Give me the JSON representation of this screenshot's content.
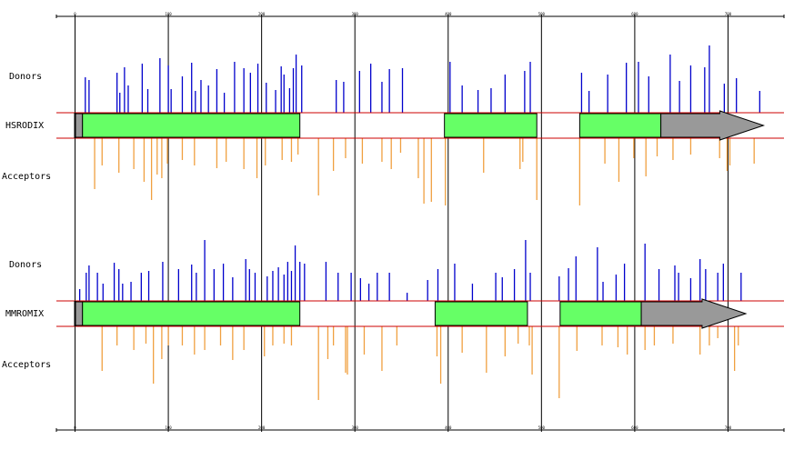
{
  "axis": {
    "xlim": [
      -20,
      760
    ],
    "xticks": [
      0,
      100,
      200,
      300,
      400,
      500,
      600,
      700
    ]
  },
  "chart_data": [
    {
      "type": "splice",
      "title": "HSRODIX",
      "ylim": [
        0,
        80
      ],
      "series": [
        {
          "name": "Donors",
          "color": "#0000cc",
          "x": [
            11,
            15,
            45,
            48,
            53,
            57,
            72,
            78,
            91,
            100,
            103,
            115,
            125,
            129,
            135,
            143,
            152,
            160,
            171,
            181,
            188,
            196,
            205,
            215,
            221,
            224,
            230,
            234,
            237,
            243,
            280,
            288,
            305,
            317,
            329,
            337,
            351,
            402,
            415,
            432,
            446,
            461,
            482,
            488,
            543,
            551,
            571,
            591,
            604,
            615,
            638,
            648,
            660,
            675,
            680,
            696,
            709,
            734
          ],
          "values": [
            39,
            36,
            44,
            22,
            50,
            30,
            54,
            26,
            60,
            52,
            26,
            40,
            55,
            24,
            36,
            30,
            48,
            22,
            56,
            49,
            44,
            54,
            33,
            25,
            51,
            42,
            27,
            49,
            64,
            52,
            36,
            34,
            46,
            54,
            34,
            48,
            49,
            56,
            30,
            25,
            27,
            42,
            46,
            56,
            44,
            24,
            42,
            55,
            56,
            40,
            64,
            35,
            52,
            50,
            74,
            32,
            38,
            24
          ]
        },
        {
          "name": "Acceptors",
          "color": "#f0a040",
          "x": [
            21,
            29,
            47,
            63,
            74,
            82,
            88,
            93,
            99,
            115,
            128,
            152,
            162,
            181,
            195,
            204,
            222,
            232,
            239,
            261,
            277,
            290,
            308,
            329,
            339,
            349,
            368,
            374,
            382,
            397,
            438,
            477,
            480,
            495,
            541,
            568,
            583,
            599,
            612,
            624,
            641,
            660,
            691,
            699,
            702,
            728
          ],
          "values": [
            56,
            30,
            38,
            34,
            48,
            68,
            40,
            44,
            28,
            24,
            30,
            33,
            26,
            34,
            44,
            30,
            24,
            26,
            18,
            63,
            36,
            22,
            28,
            26,
            34,
            16,
            44,
            72,
            70,
            74,
            38,
            34,
            26,
            68,
            74,
            28,
            48,
            22,
            42,
            20,
            24,
            18,
            22,
            36,
            30,
            28
          ]
        }
      ],
      "features": [
        {
          "start": 0,
          "end": 8,
          "color": "#999999",
          "shape": "rect"
        },
        {
          "start": 8,
          "end": 241,
          "color": "#66ff66",
          "shape": "rect"
        },
        {
          "start": 396,
          "end": 495,
          "color": "#66ff66",
          "shape": "rect"
        },
        {
          "start": 541,
          "end": 628,
          "color": "#66ff66",
          "shape": "rect"
        },
        {
          "start": 628,
          "end": 738,
          "color": "#999999",
          "shape": "arrow"
        }
      ]
    },
    {
      "type": "splice",
      "title": "MMROMIX",
      "ylim": [
        0,
        80
      ],
      "series": [
        {
          "name": "Donors",
          "color": "#0000cc",
          "x": [
            5,
            12,
            15,
            24,
            30,
            42,
            47,
            51,
            60,
            71,
            79,
            94,
            111,
            125,
            130,
            139,
            149,
            159,
            169,
            183,
            187,
            193,
            206,
            212,
            218,
            224,
            228,
            232,
            236,
            241,
            246,
            269,
            282,
            296,
            306,
            315,
            324,
            337,
            356,
            378,
            389,
            407,
            426,
            451,
            458,
            471,
            483,
            488,
            519,
            529,
            537,
            560,
            566,
            580,
            589,
            611,
            626,
            643,
            647,
            660,
            670,
            676,
            689,
            695,
            714
          ],
          "values": [
            13,
            31,
            39,
            31,
            19,
            42,
            35,
            19,
            21,
            31,
            33,
            43,
            35,
            40,
            31,
            67,
            35,
            41,
            26,
            46,
            35,
            31,
            27,
            33,
            37,
            29,
            43,
            33,
            61,
            43,
            41,
            43,
            31,
            31,
            25,
            19,
            31,
            31,
            9,
            23,
            35,
            41,
            19,
            31,
            26,
            35,
            67,
            31,
            27,
            36,
            49,
            59,
            21,
            29,
            41,
            63,
            35,
            39,
            31,
            25,
            46,
            35,
            31,
            41,
            31
          ]
        },
        {
          "name": "Acceptors",
          "color": "#f0a040",
          "x": [
            29,
            45,
            63,
            76,
            84,
            93,
            100,
            115,
            128,
            139,
            156,
            169,
            181,
            203,
            212,
            224,
            232,
            261,
            271,
            277,
            290,
            292,
            310,
            329,
            345,
            388,
            392,
            415,
            441,
            461,
            475,
            487,
            490,
            519,
            538,
            565,
            582,
            592,
            611,
            621,
            641,
            670,
            680,
            689,
            707,
            711
          ],
          "values": [
            49,
            21,
            26,
            19,
            63,
            36,
            21,
            21,
            31,
            26,
            21,
            37,
            26,
            33,
            21,
            19,
            21,
            81,
            36,
            21,
            51,
            53,
            31,
            49,
            21,
            33,
            63,
            29,
            51,
            33,
            19,
            21,
            53,
            79,
            27,
            21,
            23,
            31,
            26,
            21,
            19,
            31,
            21,
            13,
            49,
            21
          ]
        }
      ],
      "features": [
        {
          "start": 0,
          "end": 8,
          "color": "#999999",
          "shape": "rect"
        },
        {
          "start": 8,
          "end": 241,
          "color": "#66ff66",
          "shape": "rect"
        },
        {
          "start": 386,
          "end": 485,
          "color": "#66ff66",
          "shape": "rect"
        },
        {
          "start": 520,
          "end": 607,
          "color": "#66ff66",
          "shape": "rect"
        },
        {
          "start": 607,
          "end": 719,
          "color": "#999999",
          "shape": "arrow"
        }
      ]
    }
  ]
}
